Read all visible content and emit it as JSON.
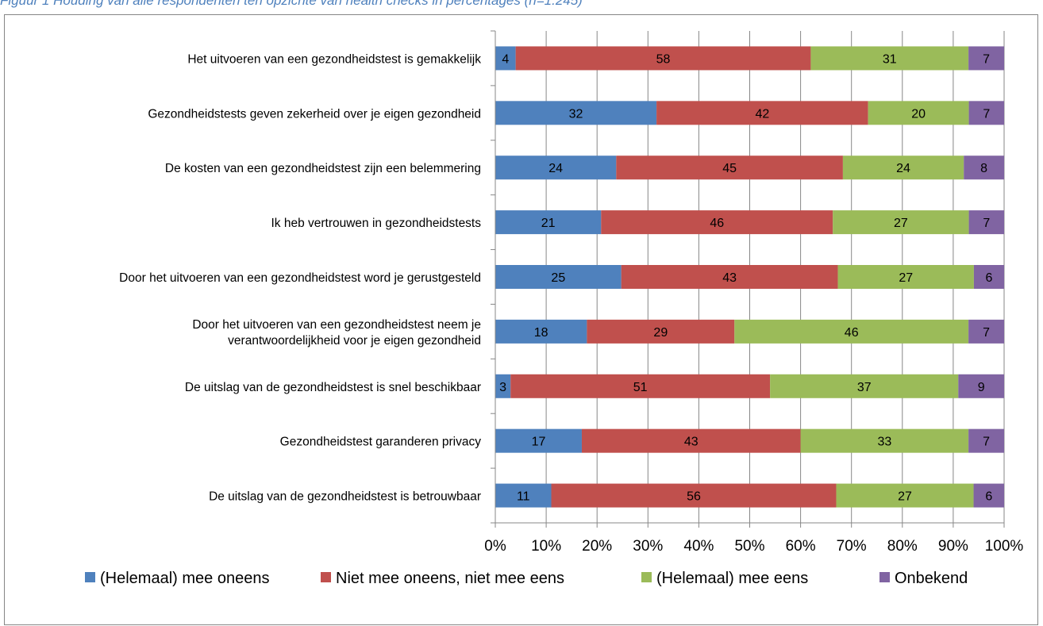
{
  "caption": "Figuur 1       Houding van alle respondenten  ten opzichte van health checks in percentages  (n=1.245)",
  "chart_data": {
    "type": "bar",
    "orientation": "horizontal",
    "stacked": true,
    "percent_stacked": true,
    "title": "",
    "xlabel": "",
    "ylabel": "",
    "xlim": [
      0,
      100
    ],
    "x_ticks": [
      "0%",
      "10%",
      "20%",
      "30%",
      "40%",
      "50%",
      "60%",
      "70%",
      "80%",
      "90%",
      "100%"
    ],
    "grid": true,
    "legend_position": "bottom",
    "categories": [
      "Het uitvoeren van een gezondheidstest is gemakkelijk",
      "Gezondheidstests geven zekerheid over je eigen gezondheid",
      "De kosten van een gezondheidstest zijn een belemmering",
      "Ik heb vertrouwen in gezondheidstests",
      "Door het uitvoeren van een gezondheidstest word je gerustgesteld",
      "Door het uitvoeren van een gezondheidstest neem je verantwoordelijkheid voor je eigen gezondheid",
      "De uitslag van de gezondheidstest is snel beschikbaar",
      "Gezondheidstest garanderen privacy ",
      "De uitslag van de gezondheidstest is betrouwbaar"
    ],
    "category_lines": [
      [
        "Het uitvoeren van een gezondheidstest is gemakkelijk"
      ],
      [
        "Gezondheidstests geven zekerheid over je eigen gezondheid"
      ],
      [
        "De kosten van een gezondheidstest zijn een belemmering"
      ],
      [
        "Ik heb vertrouwen in gezondheidstests"
      ],
      [
        "Door het uitvoeren van een gezondheidstest word je gerustgesteld"
      ],
      [
        "Door het uitvoeren van een gezondheidstest neem je",
        "verantwoordelijkheid voor je eigen gezondheid"
      ],
      [
        "De uitslag van de gezondheidstest is snel beschikbaar"
      ],
      [
        "Gezondheidstest garanderen privacy "
      ],
      [
        "De uitslag van de gezondheidstest is betrouwbaar"
      ]
    ],
    "series": [
      {
        "name": "(Helemaal) mee oneens",
        "color": "#4F81BD",
        "values": [
          4,
          32,
          24,
          21,
          25,
          18,
          3,
          17,
          11
        ]
      },
      {
        "name": "Niet mee oneens, niet mee eens",
        "color": "#C0504D",
        "values": [
          58,
          42,
          45,
          46,
          43,
          29,
          51,
          43,
          56
        ]
      },
      {
        "name": "(Helemaal) mee eens",
        "color": "#9BBB59",
        "values": [
          31,
          20,
          24,
          27,
          27,
          46,
          37,
          33,
          27
        ]
      },
      {
        "name": "Onbekend",
        "color": "#8064A2",
        "values": [
          7,
          7,
          8,
          7,
          6,
          7,
          9,
          7,
          6
        ]
      }
    ]
  }
}
